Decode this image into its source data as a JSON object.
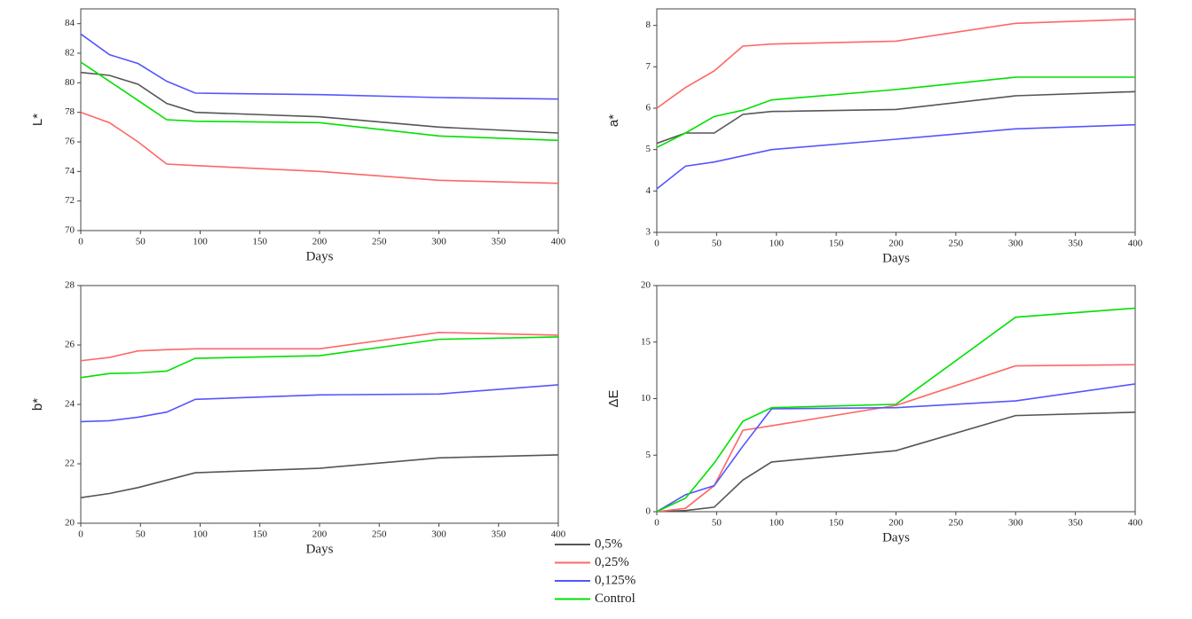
{
  "chart_data": [
    {
      "type": "line",
      "xlabel": "Days",
      "ylabel": "L*",
      "x": [
        0,
        24,
        48,
        72,
        96,
        200,
        300,
        400
      ],
      "xlim": [
        0,
        400
      ],
      "xticks": [
        0,
        50,
        100,
        150,
        200,
        250,
        300,
        350,
        400
      ],
      "ylim": [
        70,
        85
      ],
      "yticks": [
        70,
        72,
        74,
        76,
        78,
        80,
        82,
        84
      ],
      "series": [
        {
          "name": "0,5%",
          "color": "#555555",
          "values": [
            80.7,
            80.5,
            79.9,
            78.6,
            78.0,
            77.7,
            77.0,
            76.6
          ]
        },
        {
          "name": "0,25%",
          "color": "#ff6666",
          "values": [
            78.0,
            77.3,
            76.0,
            74.5,
            74.4,
            74.0,
            73.4,
            73.2
          ]
        },
        {
          "name": "0,125%",
          "color": "#5555ff",
          "values": [
            83.3,
            81.9,
            81.3,
            80.1,
            79.3,
            79.2,
            79.0,
            78.9
          ]
        },
        {
          "name": "Control",
          "color": "#00e000",
          "values": [
            81.4,
            80.1,
            78.8,
            77.5,
            77.4,
            77.3,
            76.4,
            76.1
          ]
        }
      ]
    },
    {
      "type": "line",
      "xlabel": "Days",
      "ylabel": "a*",
      "x": [
        0,
        24,
        48,
        72,
        96,
        200,
        300,
        400
      ],
      "xlim": [
        0,
        400
      ],
      "xticks": [
        0,
        50,
        100,
        150,
        200,
        250,
        300,
        350,
        400
      ],
      "ylim": [
        3,
        8.4
      ],
      "yticks": [
        3,
        4,
        5,
        6,
        7,
        8
      ],
      "series": [
        {
          "name": "0,5%",
          "color": "#555555",
          "values": [
            5.15,
            5.4,
            5.4,
            5.85,
            5.92,
            5.97,
            6.3,
            6.4
          ]
        },
        {
          "name": "0,25%",
          "color": "#ff6666",
          "values": [
            6.0,
            6.5,
            6.9,
            7.5,
            7.55,
            7.62,
            8.05,
            8.15
          ]
        },
        {
          "name": "0,125%",
          "color": "#5555ff",
          "values": [
            4.05,
            4.6,
            4.7,
            4.85,
            5.0,
            5.25,
            5.5,
            5.6
          ]
        },
        {
          "name": "Control",
          "color": "#00e000",
          "values": [
            5.05,
            5.4,
            5.8,
            5.95,
            6.2,
            6.45,
            6.75,
            6.75
          ]
        }
      ]
    },
    {
      "type": "line",
      "xlabel": "Days",
      "ylabel": "b*",
      "x": [
        0,
        24,
        48,
        72,
        96,
        200,
        300,
        400
      ],
      "xlim": [
        0,
        400
      ],
      "xticks": [
        0,
        50,
        100,
        150,
        200,
        250,
        300,
        350,
        400
      ],
      "ylim": [
        20,
        28
      ],
      "yticks": [
        20,
        22,
        24,
        26,
        28
      ],
      "series": [
        {
          "name": "0,5%",
          "color": "#555555",
          "values": [
            20.86,
            21.0,
            21.2,
            21.45,
            21.7,
            21.85,
            22.2,
            22.3
          ]
        },
        {
          "name": "0,25%",
          "color": "#ff6666",
          "values": [
            25.47,
            25.58,
            25.8,
            25.84,
            25.87,
            25.87,
            26.42,
            26.33
          ]
        },
        {
          "name": "0,125%",
          "color": "#5555ff",
          "values": [
            23.42,
            23.45,
            23.57,
            23.74,
            24.17,
            24.32,
            24.35,
            24.66
          ]
        },
        {
          "name": "Control",
          "color": "#00e000",
          "values": [
            24.9,
            25.04,
            25.06,
            25.12,
            25.55,
            25.64,
            26.19,
            26.27
          ]
        }
      ]
    },
    {
      "type": "line",
      "xlabel": "Days",
      "ylabel": "ΔE",
      "x": [
        0,
        24,
        48,
        72,
        96,
        200,
        300,
        400
      ],
      "xlim": [
        0,
        400
      ],
      "xticks": [
        0,
        50,
        100,
        150,
        200,
        250,
        300,
        350,
        400
      ],
      "ylim": [
        0,
        20
      ],
      "yticks": [
        0,
        5,
        10,
        15,
        20
      ],
      "series": [
        {
          "name": "0,5%",
          "color": "#555555",
          "values": [
            0,
            0.1,
            0.4,
            2.8,
            4.4,
            5.4,
            8.5,
            8.8
          ]
        },
        {
          "name": "0,25%",
          "color": "#ff6666",
          "values": [
            0,
            0.3,
            2.3,
            7.2,
            7.6,
            9.4,
            12.9,
            13.0
          ]
        },
        {
          "name": "0,125%",
          "color": "#5555ff",
          "values": [
            0,
            1.5,
            2.3,
            5.8,
            9.1,
            9.2,
            9.8,
            11.3
          ]
        },
        {
          "name": "Control",
          "color": "#00e000",
          "values": [
            0,
            1.2,
            4.3,
            8.0,
            9.2,
            9.5,
            17.2,
            18.0
          ]
        }
      ]
    }
  ]
}
